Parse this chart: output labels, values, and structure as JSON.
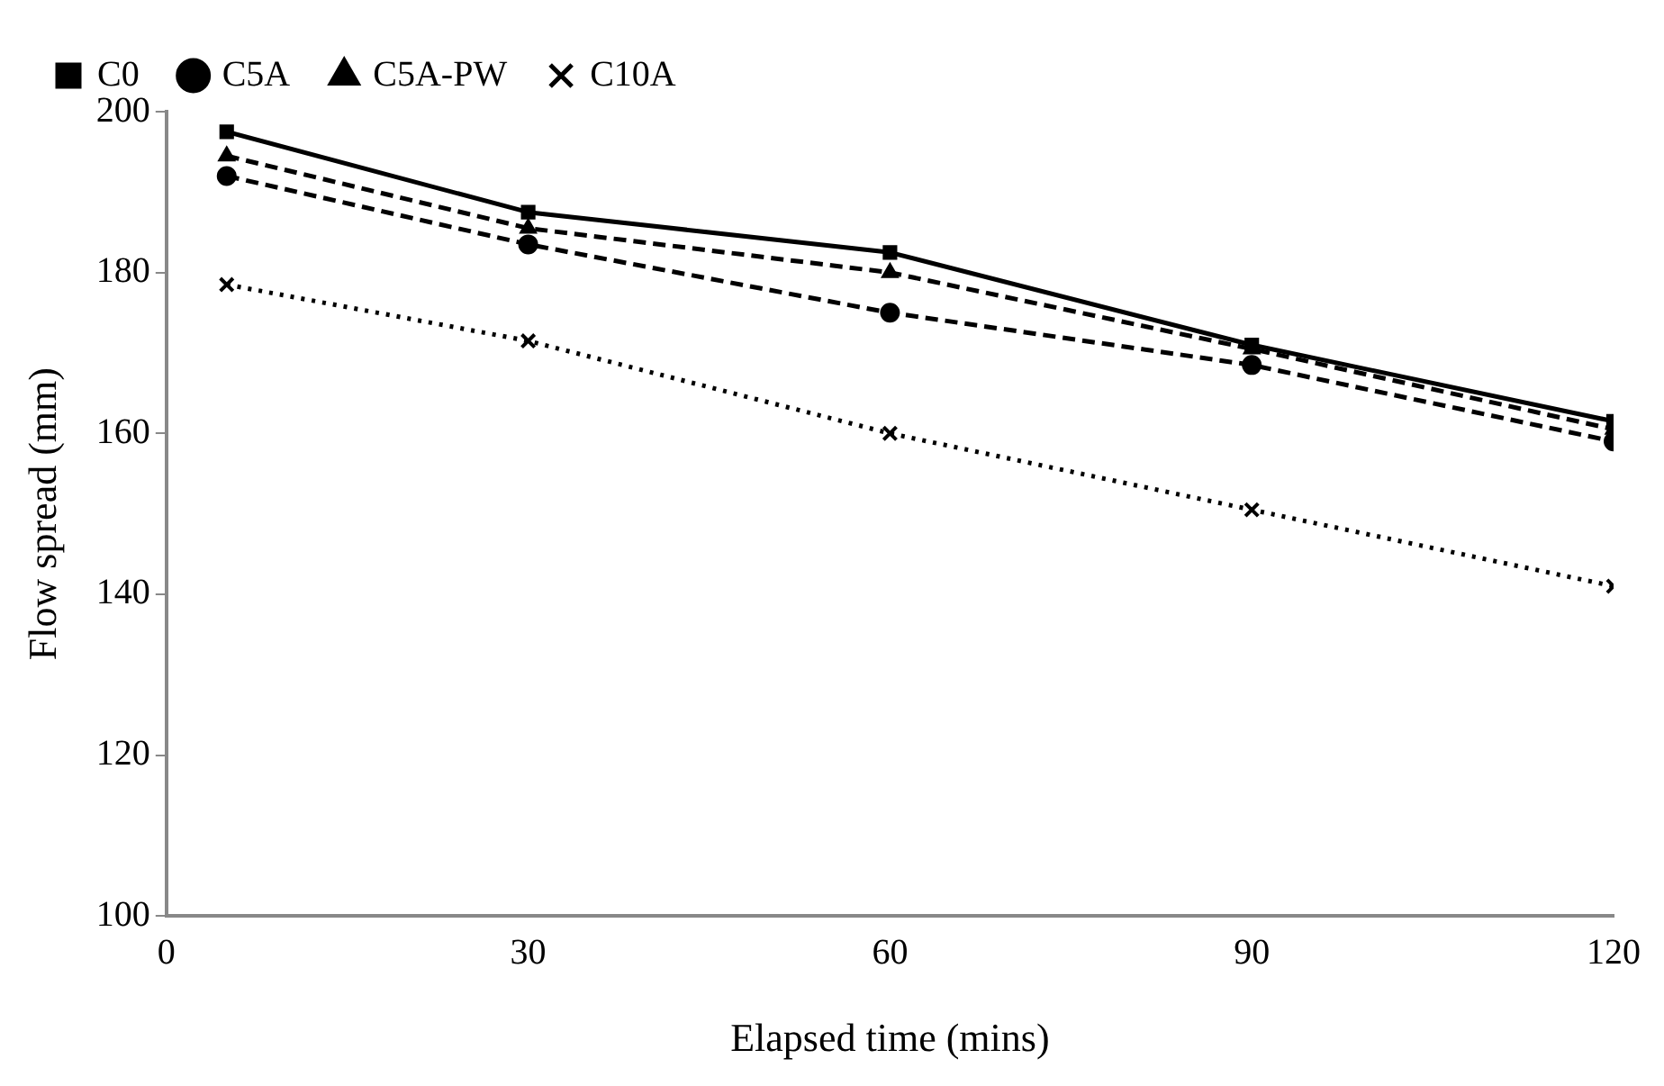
{
  "chart_data": {
    "type": "line",
    "xlabel": "Elapsed time (mins)",
    "ylabel": "Flow spread (mm)",
    "x": [
      5,
      30,
      60,
      90,
      120
    ],
    "series": [
      {
        "name": "C0",
        "color": "#000000",
        "values": [
          197.5,
          187.5,
          182.5,
          171,
          161.5
        ],
        "marker": "square",
        "line_style": "solid"
      },
      {
        "name": "C5A",
        "color": "#000000",
        "values": [
          192,
          183.5,
          175,
          168.5,
          159
        ],
        "marker": "circle",
        "line_style": "dashed"
      },
      {
        "name": "C5A-PW",
        "color": "#000000",
        "values": [
          194.5,
          185.5,
          180,
          170.5,
          160.5
        ],
        "marker": "triangle",
        "line_style": "dashed"
      },
      {
        "name": "C10A",
        "color": "#000000",
        "values": [
          178.5,
          171.5,
          160,
          150.5,
          141
        ],
        "marker": "cross",
        "line_style": "dotted"
      }
    ],
    "xlim": [
      0,
      120
    ],
    "xticks": [
      0,
      30,
      60,
      90,
      120
    ],
    "ylim": [
      100,
      200
    ],
    "yticks": [
      100,
      120,
      140,
      160,
      180,
      200
    ],
    "grid": false,
    "legend": "top"
  }
}
